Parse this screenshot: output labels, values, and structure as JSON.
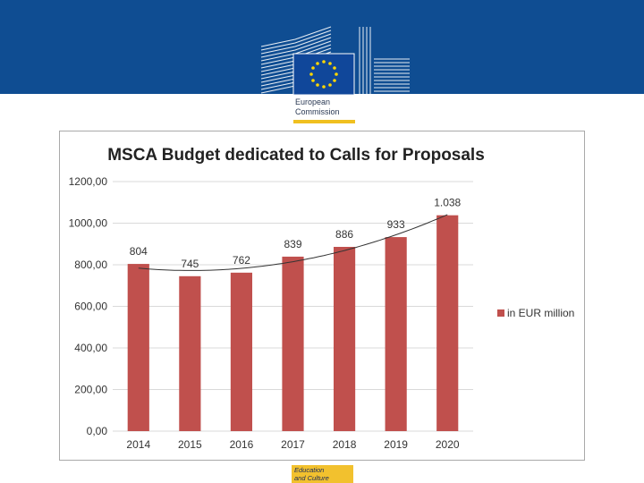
{
  "header": {
    "org_line1": "European",
    "org_line2": "Commission",
    "brand_color": "#0f4d92",
    "accent_color": "#f0c020"
  },
  "footer": {
    "line1": "Education",
    "line2": "and Culture"
  },
  "chart_data": {
    "type": "bar",
    "title": "MSCA Budget dedicated to Calls for Proposals",
    "categories": [
      "2014",
      "2015",
      "2016",
      "2017",
      "2018",
      "2019",
      "2020"
    ],
    "values": [
      804,
      745,
      762,
      839,
      886,
      933,
      1038
    ],
    "data_labels": [
      "804",
      "745",
      "762",
      "839",
      "886",
      "933",
      "1.038"
    ],
    "ylim": [
      0,
      1200
    ],
    "yticks": [
      0,
      200,
      400,
      600,
      800,
      1000,
      1200
    ],
    "ytick_labels": [
      "0,00",
      "200,00",
      "400,00",
      "600,00",
      "800,00",
      "1000,00",
      "1200,00"
    ],
    "xlabel": "",
    "ylabel": "",
    "legend": {
      "label": "in EUR million",
      "position": "right"
    },
    "trendline": true,
    "grid": true,
    "bar_color": "#c0504d"
  }
}
